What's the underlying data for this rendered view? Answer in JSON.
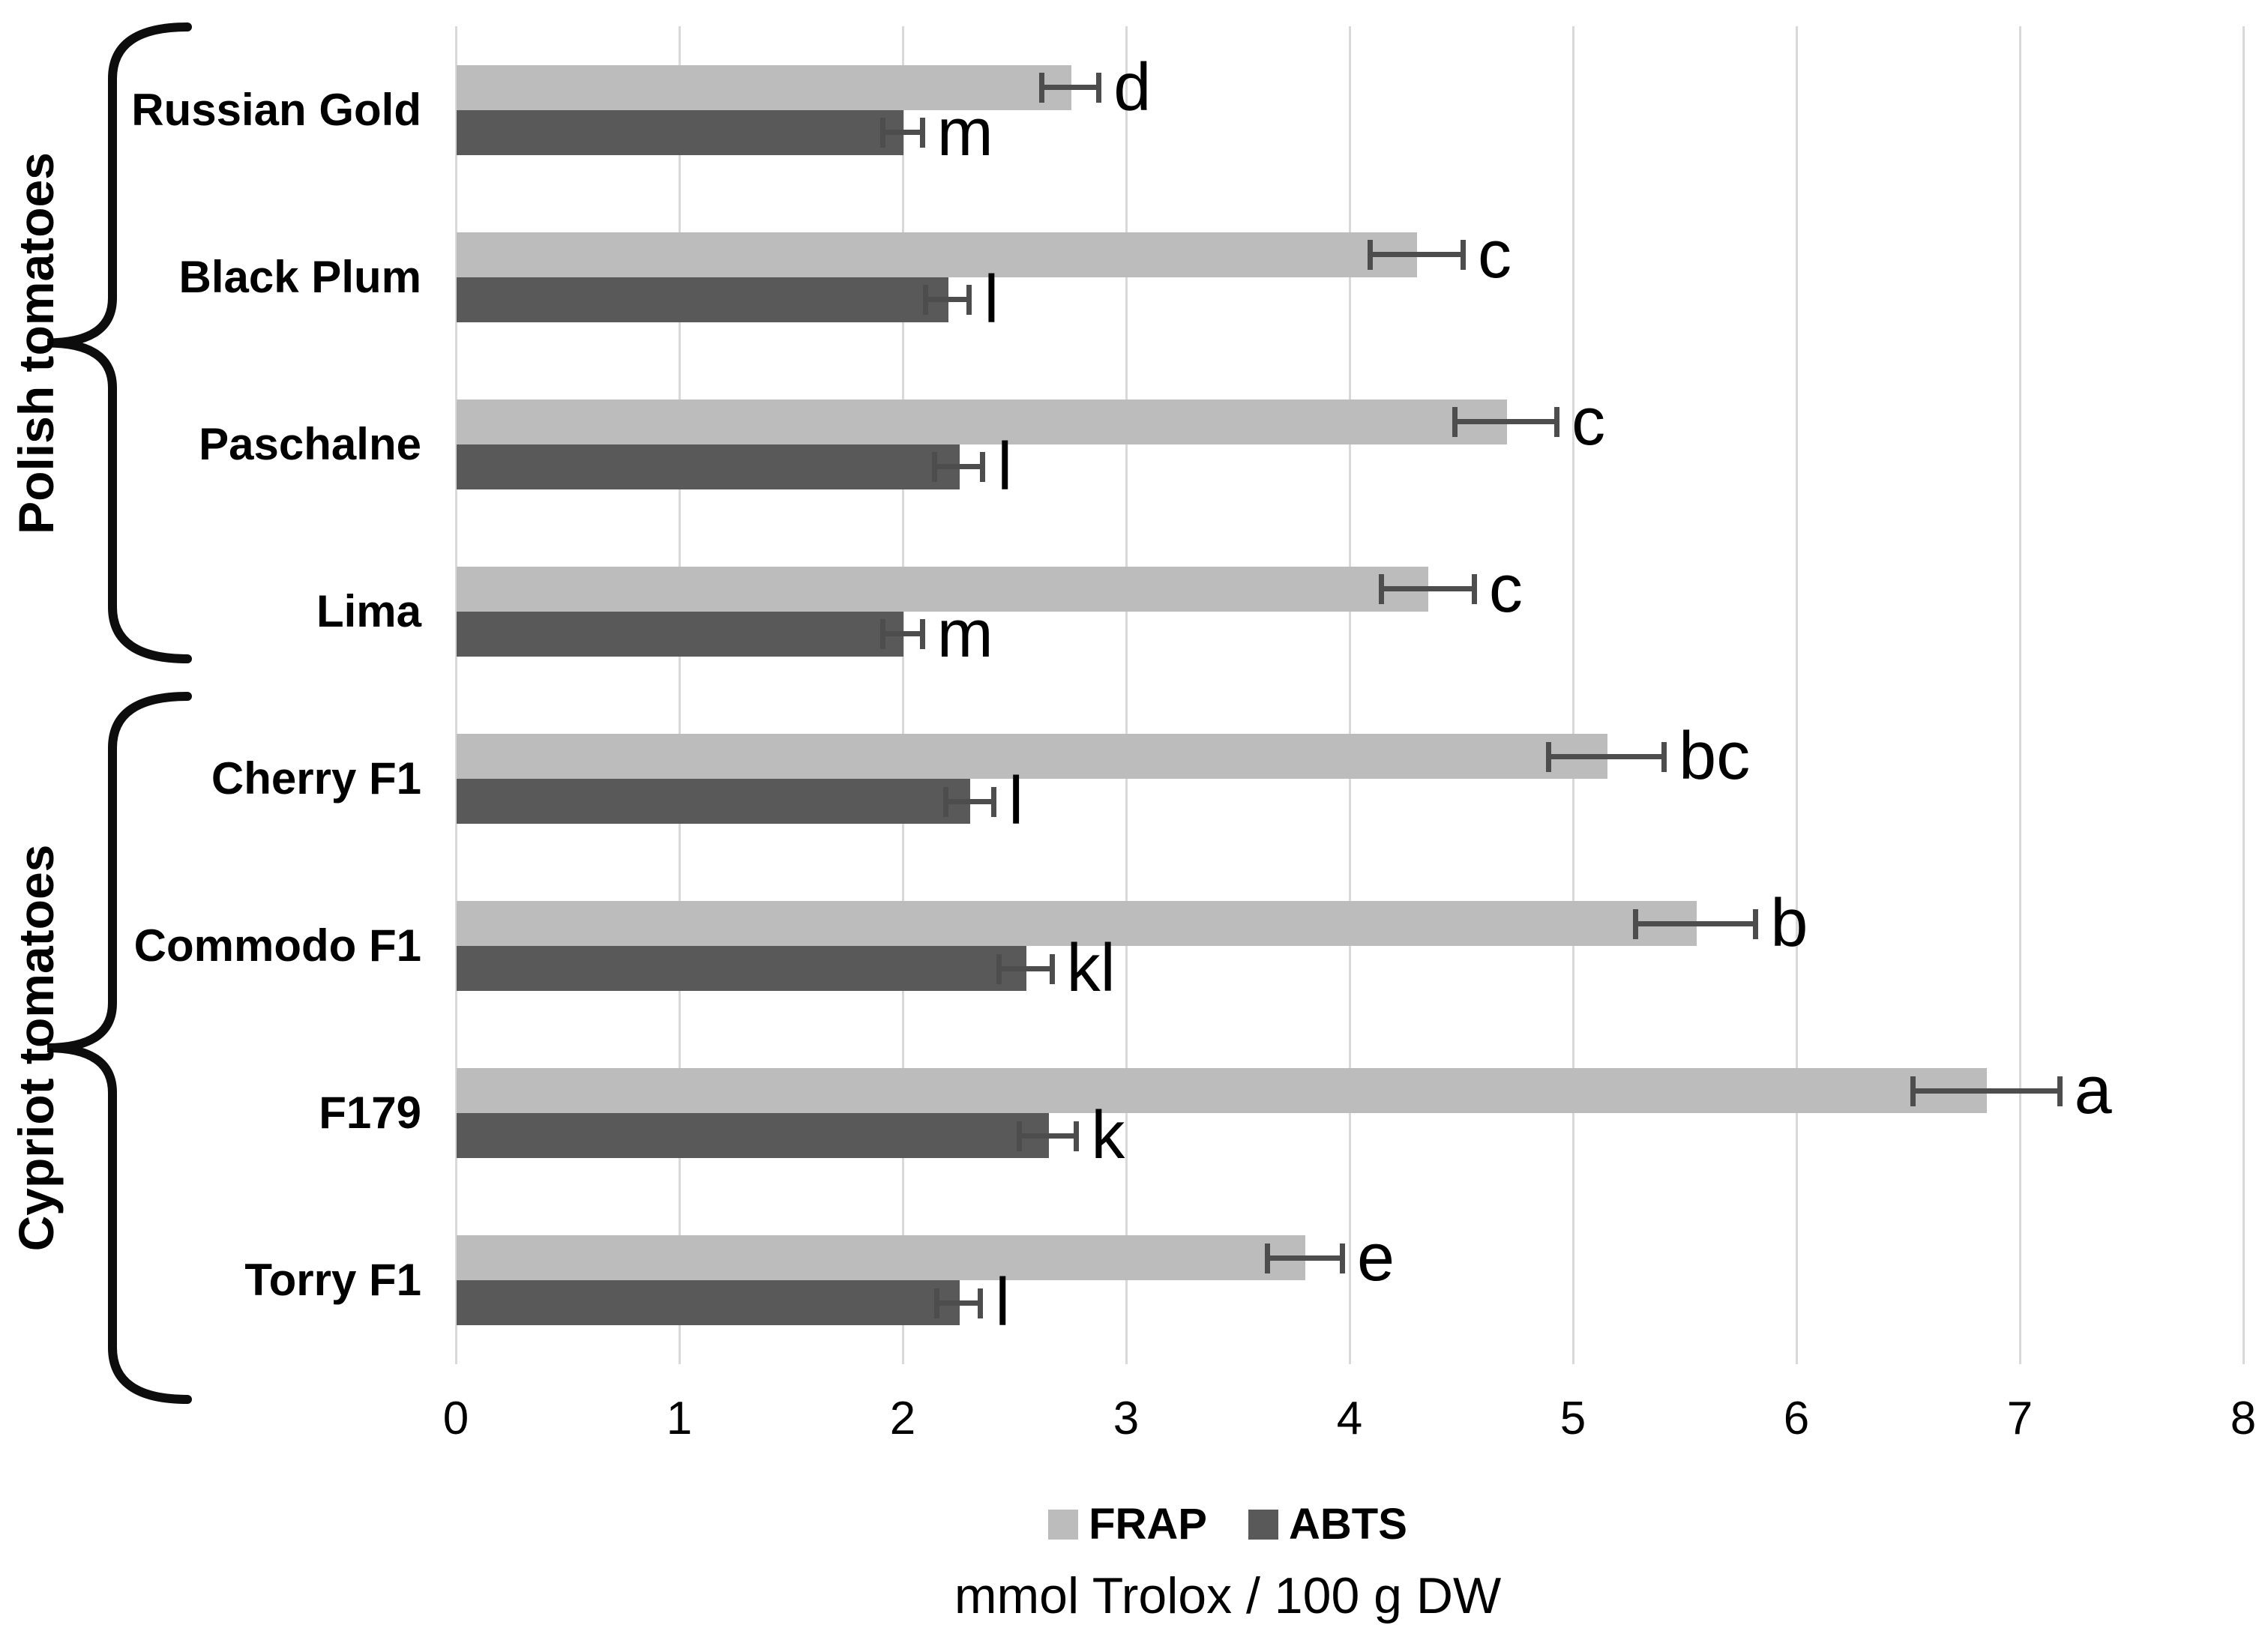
{
  "figure": {
    "background": "#ffffff",
    "group_brackets": [
      {
        "label": "Polish tomatoes",
        "from": 0,
        "to": 3
      },
      {
        "label": "Cypriot tomatoes",
        "from": 4,
        "to": 7
      }
    ]
  },
  "chart_data": {
    "type": "bar",
    "orientation": "horizontal",
    "title": "",
    "xlabel": "mmol Trolox / 100 g DW",
    "xlim": [
      0,
      8
    ],
    "x_ticks": [
      0,
      1,
      2,
      3,
      4,
      5,
      6,
      7,
      8
    ],
    "grid": true,
    "legend_position": "bottom",
    "categories": [
      "Russian Gold",
      "Black Plum",
      "Paschalne",
      "Lima",
      "Cherry F1",
      "Commodo F1",
      "F179",
      "Torry F1"
    ],
    "category_groups": [
      "Polish tomatoes",
      "Polish tomatoes",
      "Polish tomatoes",
      "Polish tomatoes",
      "Cypriot tomatoes",
      "Cypriot tomatoes",
      "Cypriot tomatoes",
      "Cypriot tomatoes"
    ],
    "series": [
      {
        "name": "FRAP",
        "color": "#bcbcbc",
        "values": [
          2.75,
          4.3,
          4.7,
          4.35,
          5.15,
          5.55,
          6.85,
          3.8
        ],
        "errors": [
          0.14,
          0.22,
          0.24,
          0.22,
          0.27,
          0.28,
          0.34,
          0.18
        ],
        "letters": [
          "d",
          "c",
          "c",
          "c",
          "bc",
          "b",
          "a",
          "e"
        ]
      },
      {
        "name": "ABTS",
        "color": "#595959",
        "values": [
          2.0,
          2.2,
          2.25,
          2.0,
          2.3,
          2.55,
          2.65,
          2.25
        ],
        "errors": [
          0.1,
          0.11,
          0.12,
          0.1,
          0.12,
          0.13,
          0.14,
          0.11
        ],
        "letters": [
          "m",
          "l",
          "l",
          "m",
          "l",
          "kl",
          "k",
          "l"
        ]
      }
    ]
  },
  "colors": {
    "gridline": "#d9d9d9",
    "error_bar": "#4d4d4d",
    "bracket": "#0d0d0d",
    "text": "#000000"
  }
}
